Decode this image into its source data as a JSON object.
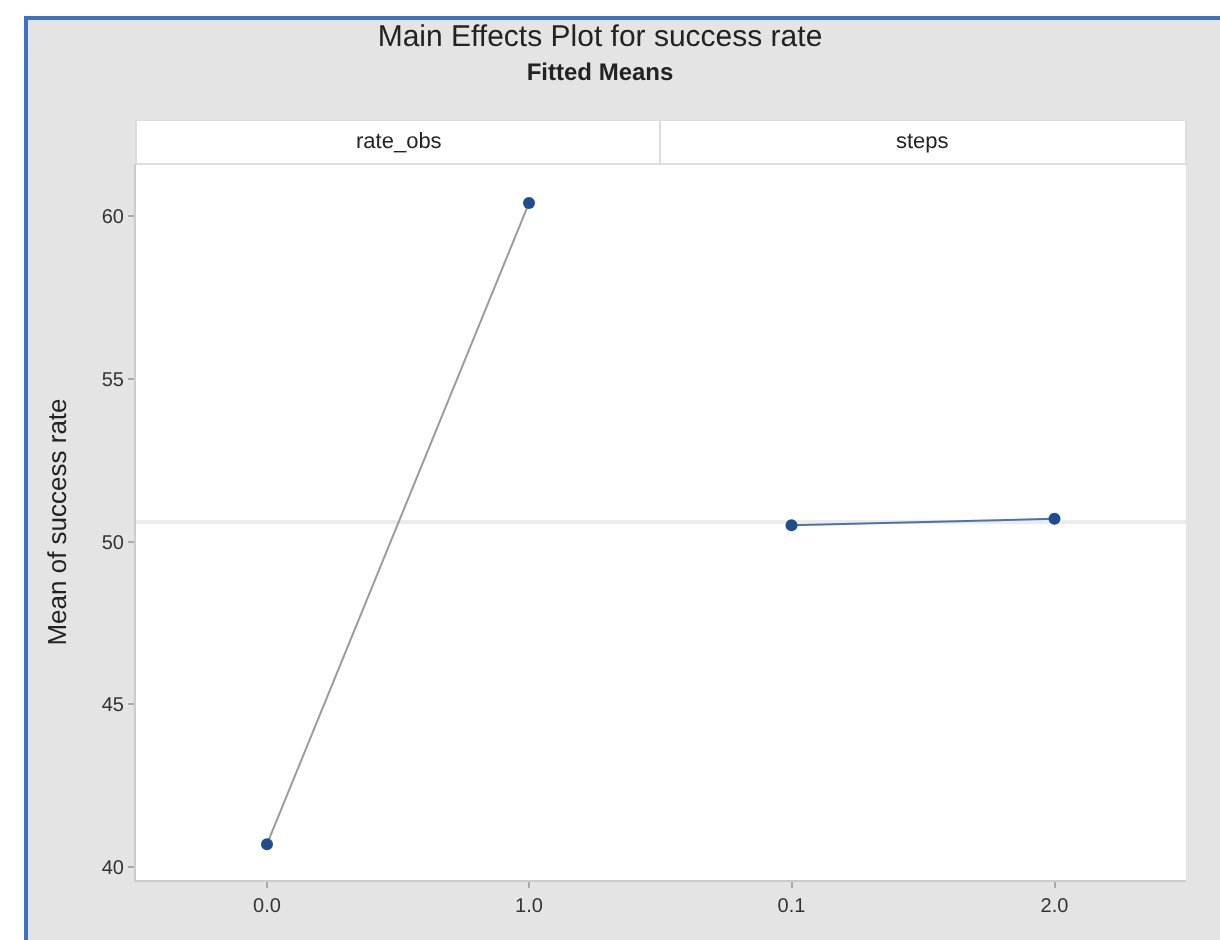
{
  "chart_data": [
    {
      "type": "line",
      "title": "Main Effects Plot for success rate",
      "subtitle": "Fitted Means",
      "xlabel": "rate_obs",
      "ylabel": "Mean of success rate",
      "categories": [
        "0.0",
        "1.0"
      ],
      "series": [
        {
          "color": "#9a9a9a",
          "values": [
            40.7,
            60.4
          ]
        }
      ],
      "marker": "circle",
      "ylim": [
        39.6,
        61.6
      ],
      "yticks": [
        40,
        45,
        50,
        55,
        60
      ],
      "ref_lines": [
        {
          "axis": "y",
          "value": 50.6,
          "color": "#ececec"
        }
      ]
    },
    {
      "type": "line",
      "xlabel": "steps",
      "categories": [
        "0.1",
        "2.0"
      ],
      "series": [
        {
          "color": "#4a72b0",
          "values": [
            50.5,
            50.7
          ]
        }
      ],
      "marker": "circle",
      "ylim": [
        39.6,
        61.6
      ],
      "yticks": [
        40,
        45,
        50,
        55,
        60
      ],
      "tick_labels": "x",
      "ref_lines": [
        {
          "axis": "y",
          "value": 50.6,
          "color": "#ececec"
        }
      ]
    }
  ]
}
